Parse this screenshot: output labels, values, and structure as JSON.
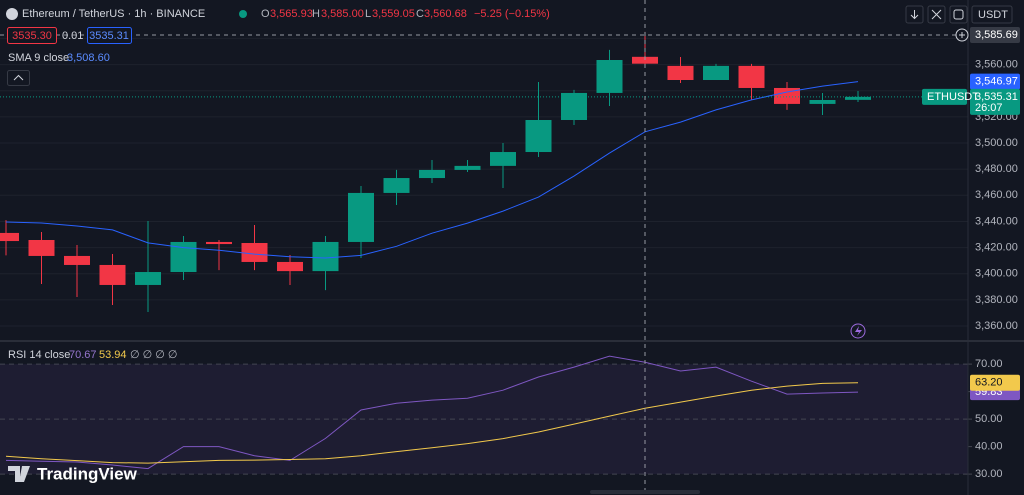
{
  "ui": {
    "currency": "USDT",
    "logo": "TradingView",
    "sell": "3535.30",
    "spread": "0.01",
    "buy": "3535.31"
  },
  "chart_data": [
    {
      "type": "candlestick",
      "title": "Ethereum / TetherUS · 1h · BINANCE",
      "symbol": "ETHUSDT",
      "ohlc_legend": [
        {
          "label": "O",
          "value": "3,565.93"
        },
        {
          "label": "H",
          "value": "3,585.00"
        },
        {
          "label": "L",
          "value": "3,559.05"
        },
        {
          "label": "C",
          "value": "3,560.68"
        }
      ],
      "change": "−5.25 (−0.15%)",
      "last_price_label": "3,535.31",
      "countdown": "26:07",
      "crosshair_label": "3,585.69",
      "up_color": "#089981",
      "down_color": "#f23645",
      "open": [
        3431.2,
        3425.8,
        3413.6,
        3406.7,
        3391.4,
        3401.3,
        3424.3,
        3423.5,
        3409.0,
        3402.0,
        3424.3,
        3461.8,
        3473.2,
        3479.4,
        3482.5,
        3493.1,
        3517.6,
        3538.3,
        3565.93,
        3559.0,
        3548.2,
        3559.0,
        3542.1,
        3529.9,
        3533.0
      ],
      "high": [
        3441.0,
        3431.9,
        3422.0,
        3415.1,
        3440.3,
        3428.9,
        3425.8,
        3437.3,
        3414.3,
        3428.9,
        3467.1,
        3479.4,
        3487.0,
        3487.0,
        3500.0,
        3546.7,
        3540.6,
        3571.2,
        3585.0,
        3565.8,
        3560.5,
        3560.5,
        3546.7,
        3538.3,
        3539.8
      ],
      "low": [
        3414.0,
        3392.1,
        3382.2,
        3376.1,
        3370.7,
        3395.2,
        3402.8,
        3402.8,
        3391.4,
        3387.5,
        3412.0,
        3452.6,
        3469.4,
        3477.8,
        3465.6,
        3489.3,
        3513.8,
        3528.3,
        3559.05,
        3545.9,
        3548.2,
        3532.9,
        3525.3,
        3521.4,
        3531.4
      ],
      "close": [
        3425.0,
        3413.6,
        3406.7,
        3391.4,
        3401.3,
        3424.3,
        3422.7,
        3409.0,
        3402.0,
        3424.3,
        3461.8,
        3473.2,
        3479.4,
        3482.5,
        3493.1,
        3517.6,
        3538.3,
        3563.5,
        3560.68,
        3548.2,
        3559.0,
        3542.1,
        3529.9,
        3532.9,
        3535.31
      ],
      "overlays": [
        {
          "name": "SMA 9 close",
          "color": "#2962ff",
          "legend_value": "3,508.60",
          "last_label": "3,546.97",
          "values": [
            3439.6,
            3438.8,
            3436.5,
            3433.5,
            3423.6,
            3420.0,
            3418.0,
            3415.0,
            3413.0,
            3412.0,
            3414.0,
            3421.0,
            3431.0,
            3438.7,
            3447.9,
            3458.6,
            3474.7,
            3492.3,
            3508.6,
            3516.0,
            3525.3,
            3533.0,
            3539.0,
            3543.5,
            3546.97
          ]
        }
      ],
      "ylim": [
        3349.3,
        3609.4
      ],
      "yticks": [
        {
          "value": 3360,
          "label": "3,360.00"
        },
        {
          "value": 3380,
          "label": "3,380.00"
        },
        {
          "value": 3400,
          "label": "3,400.00"
        },
        {
          "value": 3420,
          "label": "3,420.00"
        },
        {
          "value": 3440,
          "label": "3,440.00"
        },
        {
          "value": 3460,
          "label": "3,460.00"
        },
        {
          "value": 3480,
          "label": "3,480.00"
        },
        {
          "value": 3500,
          "label": "3,500.00"
        },
        {
          "value": 3520,
          "label": "3,520.00"
        },
        {
          "value": 3540,
          "label": "3,540.00"
        },
        {
          "value": 3560,
          "label": "3,560.00"
        },
        {
          "value": 3580,
          "label": "3,580.00"
        }
      ],
      "grid": true
    },
    {
      "type": "line",
      "title": "RSI 14 close",
      "extra_legend": "∅ ∅ ∅ ∅",
      "series": [
        {
          "color": "#7e57c2",
          "legend_value": "70.67",
          "last_label": "59.83",
          "values": [
            35,
            34.7,
            34.4,
            33.3,
            32,
            40,
            40,
            36.7,
            35,
            43,
            53.3,
            55.8,
            56.9,
            57.6,
            60.5,
            65.3,
            68.9,
            72.9,
            70.67,
            67.5,
            68.9,
            63.8,
            59.1,
            59.5,
            59.83
          ]
        },
        {
          "color": "#f2c94c",
          "legend_value": "53.94",
          "last_label": "63.20",
          "values": [
            36.5,
            35.6,
            34.9,
            34.2,
            34,
            34.5,
            35,
            35.1,
            35.3,
            35.6,
            36.7,
            38.2,
            39.6,
            41.1,
            42.9,
            45.3,
            48.2,
            51.1,
            53.94,
            56.2,
            58.4,
            60.5,
            62,
            63,
            63.2
          ]
        }
      ],
      "band": [
        30,
        70
      ],
      "midline": 50,
      "band_color": "#7e57c2",
      "ylim": [
        22.4,
        78.4
      ],
      "yticks": [
        {
          "value": 30,
          "label": "30.00"
        },
        {
          "value": 40,
          "label": "40.00"
        },
        {
          "value": 50,
          "label": "50.00"
        },
        {
          "value": 60,
          "label": "60.00"
        },
        {
          "value": 70,
          "label": "70.00"
        }
      ]
    }
  ]
}
